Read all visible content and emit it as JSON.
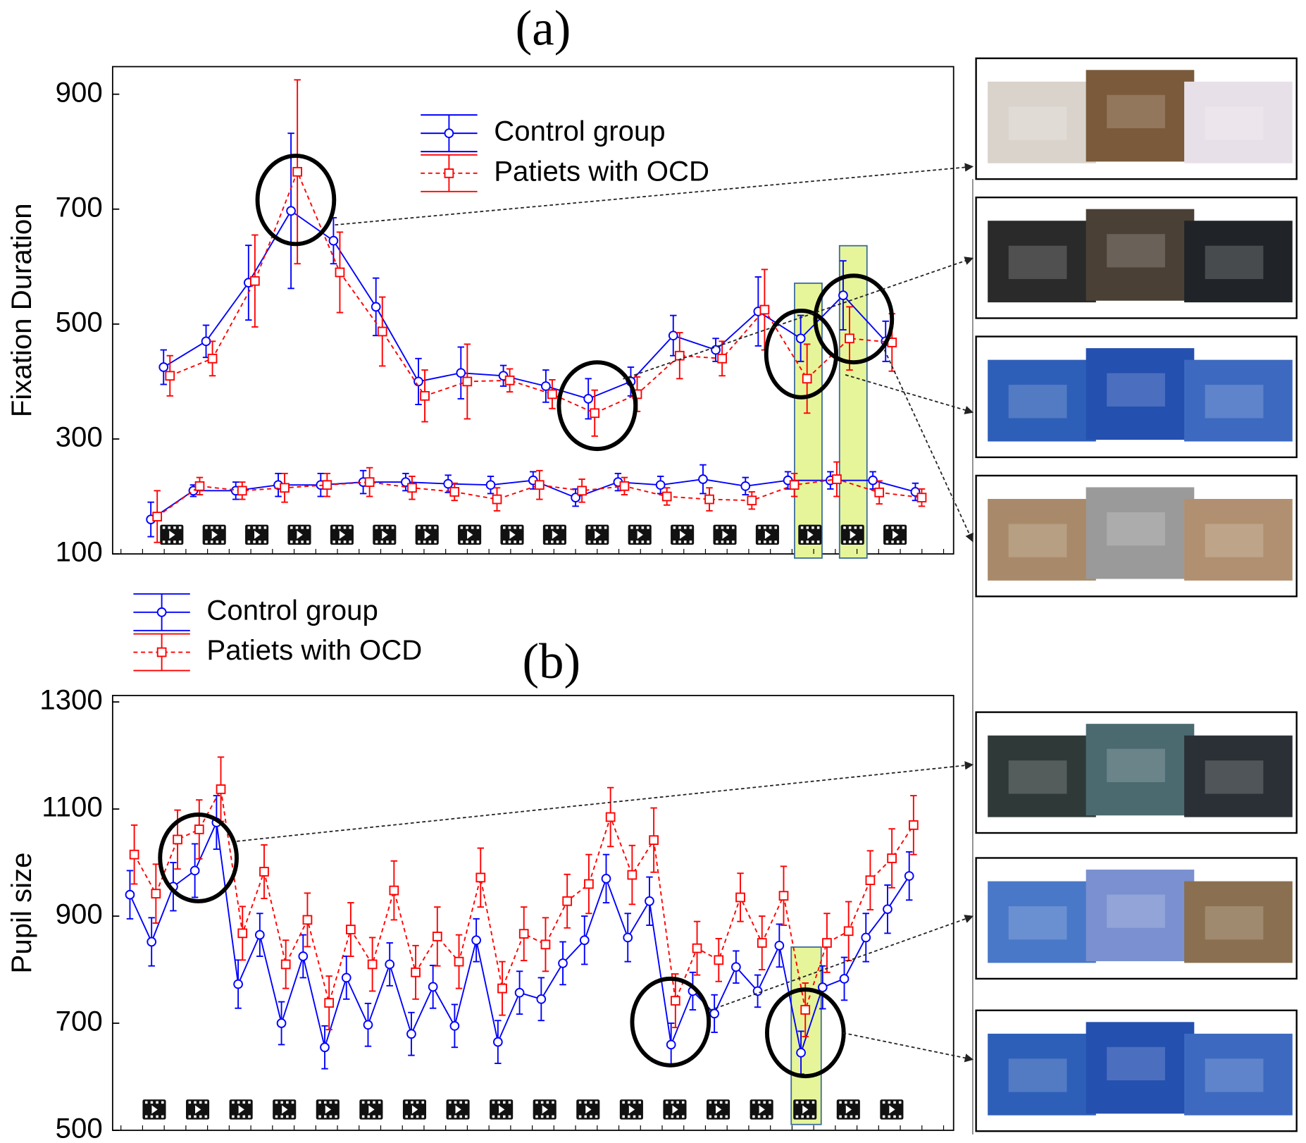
{
  "chart_data": [
    {
      "type": "line",
      "title": "(a)",
      "y_label": "Fixation Duration",
      "xlim": [
        -0.2,
        19.6
      ],
      "ylim": [
        100,
        948
      ],
      "yticks": [
        100,
        300,
        500,
        700,
        900
      ],
      "series": [
        {
          "name": "Control group",
          "color": "#0000ff",
          "line_style": "solid",
          "marker": "circle",
          "groups": [
            {
              "x": [
                1,
                2,
                3,
                4,
                5,
                6,
                7,
                8,
                9,
                10,
                11,
                12,
                13,
                14,
                15,
                16,
                17,
                18
              ],
              "values": [
                425,
                470,
                572,
                697,
                645,
                530,
                400,
                415,
                410,
                392,
                370,
                400,
                480,
                455,
                522,
                475,
                550,
                470
              ],
              "errors": [
                30,
                28,
                65,
                135,
                40,
                50,
                40,
                45,
                18,
                28,
                35,
                25,
                35,
                20,
                60,
                40,
                60,
                35
              ]
            },
            {
              "x": [
                0.7,
                1.7,
                2.7,
                3.7,
                4.7,
                5.7,
                6.7,
                7.7,
                8.7,
                9.7,
                10.7,
                11.7,
                12.7,
                13.7,
                14.7,
                15.7,
                16.7,
                17.7,
                18.7
              ],
              "values": [
                160,
                210,
                210,
                220,
                220,
                225,
                225,
                222,
                220,
                228,
                198,
                225,
                220,
                230,
                218,
                228,
                228,
                228,
                208
              ],
              "errors": [
                30,
                10,
                15,
                20,
                20,
                20,
                15,
                15,
                15,
                15,
                15,
                15,
                15,
                25,
                15,
                15,
                15,
                15,
                15
              ]
            }
          ]
        },
        {
          "name": "Patiets with OCD",
          "color": "#ff0000",
          "line_style": "dashed",
          "marker": "square",
          "groups": [
            {
              "x": [
                1.15,
                2.15,
                3.15,
                4.15,
                5.15,
                6.15,
                7.15,
                8.15,
                9.15,
                10.15,
                11.15,
                12.15,
                13.15,
                14.15,
                15.15,
                16.15,
                17.15,
                18.15
              ],
              "values": [
                410,
                440,
                575,
                765,
                590,
                487,
                375,
                400,
                402,
                378,
                345,
                378,
                445,
                440,
                525,
                405,
                475,
                468
              ],
              "errors": [
                35,
                30,
                80,
                160,
                70,
                60,
                45,
                65,
                20,
                25,
                40,
                30,
                40,
                30,
                70,
                60,
                55,
                50
              ]
            },
            {
              "x": [
                0.85,
                1.85,
                2.85,
                3.85,
                4.85,
                5.85,
                6.85,
                7.85,
                8.85,
                9.85,
                10.85,
                11.85,
                12.85,
                13.85,
                14.85,
                15.85,
                16.85,
                17.85,
                18.85
              ],
              "values": [
                165,
                218,
                210,
                215,
                220,
                225,
                215,
                208,
                195,
                220,
                210,
                218,
                200,
                195,
                193,
                220,
                230,
                207,
                198
              ],
              "errors": [
                45,
                15,
                15,
                25,
                20,
                25,
                20,
                15,
                20,
                25,
                20,
                15,
                15,
                20,
                15,
                20,
                30,
                20,
                15
              ]
            }
          ]
        }
      ]
    },
    {
      "type": "line",
      "title": "(b)",
      "y_label": "Pupil size",
      "xlim": [
        0,
        38.85
      ],
      "ylim": [
        500,
        1312
      ],
      "yticks": [
        500,
        700,
        900,
        1100,
        1300
      ],
      "series": [
        {
          "name": "Control group",
          "color": "#0000ff",
          "line_style": "solid",
          "marker": "circle",
          "groups": [
            {
              "x": [
                0.8,
                1.8,
                2.8,
                3.8,
                4.8,
                5.8,
                6.8,
                7.8,
                8.8,
                9.8,
                10.8,
                11.8,
                12.8,
                13.8,
                14.8,
                15.8,
                16.8,
                17.8,
                18.8,
                19.8,
                20.8,
                21.8,
                22.8,
                23.8,
                24.8,
                25.8,
                26.8,
                27.8,
                28.8,
                29.8,
                30.8,
                31.8,
                32.8,
                33.8,
                34.8,
                35.8,
                36.8
              ],
              "values": [
                940,
                852,
                955,
                985,
                1075,
                773,
                865,
                700,
                825,
                655,
                785,
                697,
                810,
                680,
                768,
                695,
                855,
                665,
                757,
                745,
                812,
                855,
                970,
                860,
                928,
                660,
                760,
                718,
                805,
                760,
                845,
                645,
                767,
                783,
                860,
                913,
                975
              ],
              "errors": [
                45,
                45,
                45,
                50,
                50,
                45,
                40,
                40,
                40,
                40,
                40,
                40,
                40,
                40,
                40,
                40,
                40,
                40,
                40,
                40,
                40,
                45,
                45,
                45,
                45,
                40,
                35,
                35,
                30,
                30,
                40,
                40,
                40,
                40,
                45,
                45,
                45
              ]
            }
          ]
        },
        {
          "name": "Patiets with OCD",
          "color": "#ff0000",
          "line_style": "dashed",
          "marker": "square",
          "groups": [
            {
              "x": [
                1,
                2,
                3,
                4,
                5,
                6,
                7,
                8,
                9,
                10,
                11,
                12,
                13,
                14,
                15,
                16,
                17,
                18,
                19,
                20,
                21,
                22,
                23,
                24,
                25,
                26,
                27,
                28,
                29,
                30,
                31,
                32,
                33,
                34,
                35,
                36,
                37
              ],
              "values": [
                1015,
                942,
                1043,
                1062,
                1137,
                868,
                983,
                810,
                893,
                738,
                875,
                810,
                948,
                795,
                862,
                815,
                972,
                765,
                867,
                847,
                928,
                960,
                1085,
                977,
                1042,
                742,
                840,
                818,
                935,
                850,
                938,
                725,
                850,
                872,
                967,
                1008,
                1070
              ],
              "errors": [
                55,
                55,
                55,
                55,
                60,
                50,
                50,
                45,
                50,
                50,
                50,
                50,
                55,
                50,
                55,
                50,
                55,
                50,
                50,
                50,
                50,
                55,
                55,
                55,
                60,
                50,
                50,
                40,
                45,
                50,
                55,
                50,
                55,
                55,
                55,
                55,
                55
              ]
            }
          ]
        }
      ]
    }
  ]
}
